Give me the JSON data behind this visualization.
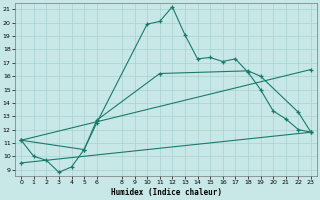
{
  "xlabel": "Humidex (Indice chaleur)",
  "bg_color": "#c8e8e8",
  "line_color": "#1a7a6a",
  "grid_color": "#a8d0d0",
  "xlim": [
    -0.5,
    23.5
  ],
  "ylim": [
    8.5,
    21.5
  ],
  "yticks": [
    9,
    10,
    11,
    12,
    13,
    14,
    15,
    16,
    17,
    18,
    19,
    20,
    21
  ],
  "xticks": [
    0,
    1,
    2,
    3,
    4,
    5,
    6,
    8,
    9,
    10,
    11,
    12,
    13,
    14,
    15,
    16,
    17,
    18,
    19,
    20,
    21,
    22,
    23
  ],
  "line1_x": [
    0,
    1,
    2,
    3,
    4,
    5,
    6,
    10,
    11,
    12,
    13,
    14,
    15,
    16,
    17,
    18,
    19,
    20,
    21,
    22,
    23
  ],
  "line1_y": [
    11.2,
    10.0,
    9.7,
    8.8,
    9.2,
    10.5,
    12.5,
    19.9,
    20.1,
    21.2,
    19.1,
    17.3,
    17.4,
    17.1,
    17.3,
    16.3,
    15.0,
    13.4,
    12.8,
    12.0,
    11.8
  ],
  "line2_x": [
    0,
    5,
    6,
    11,
    18,
    19,
    22,
    23
  ],
  "line2_y": [
    11.2,
    10.5,
    12.7,
    16.2,
    16.4,
    16.0,
    13.3,
    11.8
  ],
  "line3_x": [
    0,
    23
  ],
  "line3_y": [
    11.2,
    16.5
  ],
  "line4_x": [
    0,
    23
  ],
  "line4_y": [
    9.5,
    11.8
  ]
}
